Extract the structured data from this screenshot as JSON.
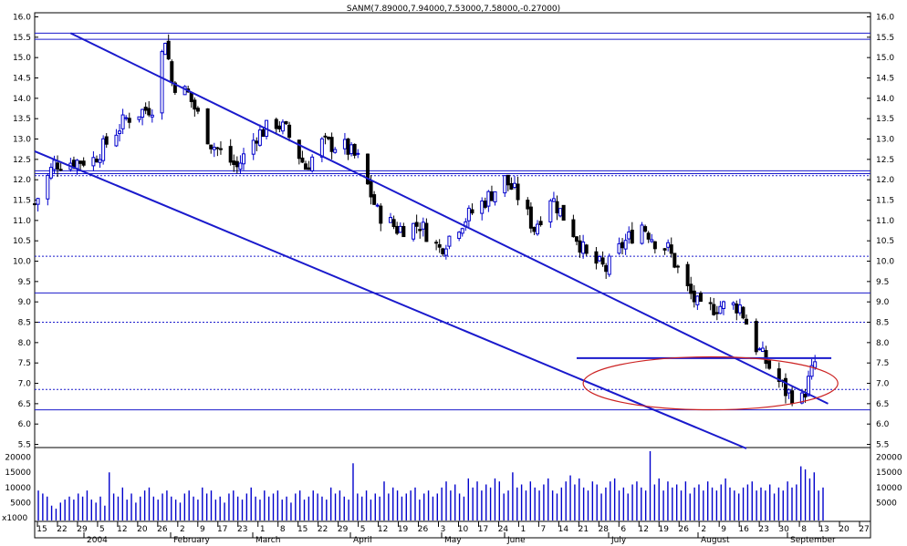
{
  "title": "SANM(7.89000,7.94000,7.53000,7.58000,-0.27000)",
  "price_axis": {
    "ticks": [
      "16.0",
      "15.5",
      "15.0",
      "14.5",
      "14.0",
      "13.5",
      "13.0",
      "12.5",
      "12.0",
      "11.5",
      "11.0",
      "10.5",
      "10.0",
      "9.5",
      "9.0",
      "8.5",
      "8.0",
      "7.5",
      "7.0",
      "6.5",
      "6.0",
      "5.5"
    ],
    "ylim": [
      5.3,
      16.2
    ]
  },
  "volume_axis": {
    "ticks": [
      "20000",
      "15000",
      "10000",
      "5000"
    ],
    "unit_label": "x1000",
    "ylim": [
      0,
      22000
    ]
  },
  "x_axis": {
    "day_labels": [
      "15",
      "22",
      "29",
      "5",
      "12",
      "20",
      "26",
      "2",
      "9",
      "17",
      "23",
      "1",
      "8",
      "15",
      "22",
      "29",
      "5",
      "12",
      "19",
      "26",
      "3",
      "10",
      "17",
      "24",
      "1",
      "7",
      "14",
      "21",
      "28",
      "6",
      "12",
      "19",
      "26",
      "2",
      "9",
      "16",
      "23",
      "30",
      "8",
      "13",
      "20",
      "27"
    ],
    "month_labels": [
      "2004",
      "February",
      "March",
      "April",
      "May",
      "June",
      "July",
      "August",
      "September"
    ]
  },
  "chart_data": {
    "type": "candlestick",
    "title": "SANM(7.89000,7.94000,7.53000,7.58000,-0.27000)",
    "last_bar": {
      "open": 7.89,
      "high": 7.94,
      "low": 7.53,
      "close": 7.58,
      "change": -0.27
    },
    "ylim": [
      5.3,
      16.2
    ],
    "x_range": [
      "2004-01-15",
      "2004-09-27"
    ],
    "trend_channel": {
      "upper": [
        {
          "date": "2004-01-26",
          "price": 15.6
        },
        {
          "date": "2004-09-14",
          "price": 6.5
        }
      ],
      "lower": [
        {
          "date": "2004-01-15",
          "price": 12.7
        },
        {
          "date": "2004-08-20",
          "price": 5.4
        }
      ]
    },
    "horizontal_levels": [
      15.6,
      15.45,
      12.22,
      12.15,
      9.22,
      6.35
    ],
    "dotted_levels": [
      12.1,
      10.12,
      8.5,
      6.85
    ],
    "breakout_level": {
      "price": 7.62,
      "from": "2004-06-29",
      "to": "2004-09-15"
    },
    "highlight_ellipse": {
      "from": "2004-07-01",
      "to": "2004-09-17",
      "center_price": 7.0
    },
    "price_path": [
      {
        "date": "2004-01-15",
        "price": 11.4
      },
      {
        "date": "2004-01-21",
        "price": 12.4
      },
      {
        "date": "2004-02-02",
        "price": 12.5
      },
      {
        "date": "2004-02-12",
        "price": 13.5
      },
      {
        "date": "2004-02-20",
        "price": 13.8
      },
      {
        "date": "2004-02-24",
        "price": 15.5
      },
      {
        "date": "2004-02-26",
        "price": 14.4
      },
      {
        "date": "2004-03-02",
        "price": 14.1
      },
      {
        "date": "2004-03-09",
        "price": 12.9
      },
      {
        "date": "2004-03-17",
        "price": 12.3
      },
      {
        "date": "2004-03-23",
        "price": 13.1
      },
      {
        "date": "2004-03-29",
        "price": 13.4
      },
      {
        "date": "2004-04-01",
        "price": 13.2
      },
      {
        "date": "2004-04-07",
        "price": 12.3
      },
      {
        "date": "2004-04-12",
        "price": 12.9
      },
      {
        "date": "2004-04-19",
        "price": 12.8
      },
      {
        "date": "2004-04-23",
        "price": 12.5
      },
      {
        "date": "2004-04-29",
        "price": 11.2
      },
      {
        "date": "2004-05-05",
        "price": 10.8
      },
      {
        "date": "2004-05-12",
        "price": 10.9
      },
      {
        "date": "2004-05-18",
        "price": 10.3
      },
      {
        "date": "2004-05-24",
        "price": 10.9
      },
      {
        "date": "2004-06-01",
        "price": 11.5
      },
      {
        "date": "2004-06-07",
        "price": 12.0
      },
      {
        "date": "2004-06-11",
        "price": 11.6
      },
      {
        "date": "2004-06-16",
        "price": 10.8
      },
      {
        "date": "2004-06-21",
        "price": 11.6
      },
      {
        "date": "2004-06-25",
        "price": 11.1
      },
      {
        "date": "2004-06-29",
        "price": 10.6
      },
      {
        "date": "2004-07-02",
        "price": 10.1
      },
      {
        "date": "2004-07-08",
        "price": 9.8
      },
      {
        "date": "2004-07-13",
        "price": 10.4
      },
      {
        "date": "2004-07-19",
        "price": 10.9
      },
      {
        "date": "2004-07-23",
        "price": 10.5
      },
      {
        "date": "2004-07-27",
        "price": 10.3
      },
      {
        "date": "2004-08-02",
        "price": 9.3
      },
      {
        "date": "2004-08-06",
        "price": 8.8
      },
      {
        "date": "2004-08-12",
        "price": 8.9
      },
      {
        "date": "2004-08-18",
        "price": 8.9
      },
      {
        "date": "2004-08-23",
        "price": 7.9
      },
      {
        "date": "2004-08-27",
        "price": 7.4
      },
      {
        "date": "2004-09-01",
        "price": 6.8
      },
      {
        "date": "2004-09-06",
        "price": 6.6
      },
      {
        "date": "2004-09-10",
        "price": 7.5
      },
      {
        "date": "2004-09-13",
        "price": 7.0
      }
    ],
    "volume_series": {
      "name": "Volume",
      "unit": "x1000",
      "values": [
        9000,
        8000,
        7000,
        4000,
        3000,
        5000,
        6000,
        7000,
        6000,
        8000,
        7000,
        9000,
        6000,
        5000,
        7000,
        4000,
        15000,
        8000,
        7000,
        10000,
        6000,
        8000,
        5000,
        7000,
        9000,
        10000,
        7000,
        6000,
        8000,
        9000,
        7000,
        6000,
        5000,
        8000,
        9000,
        7000,
        6000,
        10000,
        8000,
        9000,
        6000,
        7000,
        5000,
        8000,
        9000,
        7000,
        6000,
        8000,
        10000,
        7000,
        6000,
        9000,
        7000,
        8000,
        9000,
        6000,
        7000,
        5000,
        8000,
        9000,
        6000,
        7000,
        9000,
        8000,
        7000,
        6000,
        10000,
        8000,
        9000,
        7000,
        6000,
        18000,
        8000,
        7000,
        9000,
        6000,
        8000,
        7000,
        12000,
        8000,
        10000,
        9000,
        7000,
        8000,
        9000,
        10000,
        6000,
        8000,
        9000,
        7000,
        8000,
        10000,
        12000,
        9000,
        11000,
        8000,
        7000,
        13000,
        10000,
        12000,
        9000,
        11000,
        10000,
        13000,
        12000,
        8000,
        9000,
        15000,
        10000,
        11000,
        9000,
        12000,
        10000,
        9000,
        11000,
        13000,
        9000,
        8000,
        10000,
        12000,
        14000,
        11000,
        13000,
        10000,
        9000,
        12000,
        11000,
        8000,
        10000,
        12000,
        13000,
        9000,
        10000,
        8000,
        11000,
        12000,
        10000,
        9000,
        22000,
        11000,
        13000,
        9000,
        12000,
        10000,
        11000,
        9000,
        12000,
        8000,
        10000,
        11000,
        9000,
        12000,
        10000,
        9000,
        11000,
        13000,
        10000,
        9000,
        8000,
        10000,
        11000,
        12000,
        9000,
        10000,
        9000,
        11000,
        8000,
        10000,
        9000,
        12000,
        10000,
        11000,
        17000,
        16000,
        13000,
        15000,
        9000,
        10000
      ]
    }
  },
  "colors": {
    "up_candle": "#0000cc",
    "down_candle": "#000000",
    "trendline": "#1a1acc",
    "level_line": "#1a1acc",
    "ellipse": "#cc2222",
    "volume_bar": "#0000cc",
    "frame": "#000000"
  }
}
